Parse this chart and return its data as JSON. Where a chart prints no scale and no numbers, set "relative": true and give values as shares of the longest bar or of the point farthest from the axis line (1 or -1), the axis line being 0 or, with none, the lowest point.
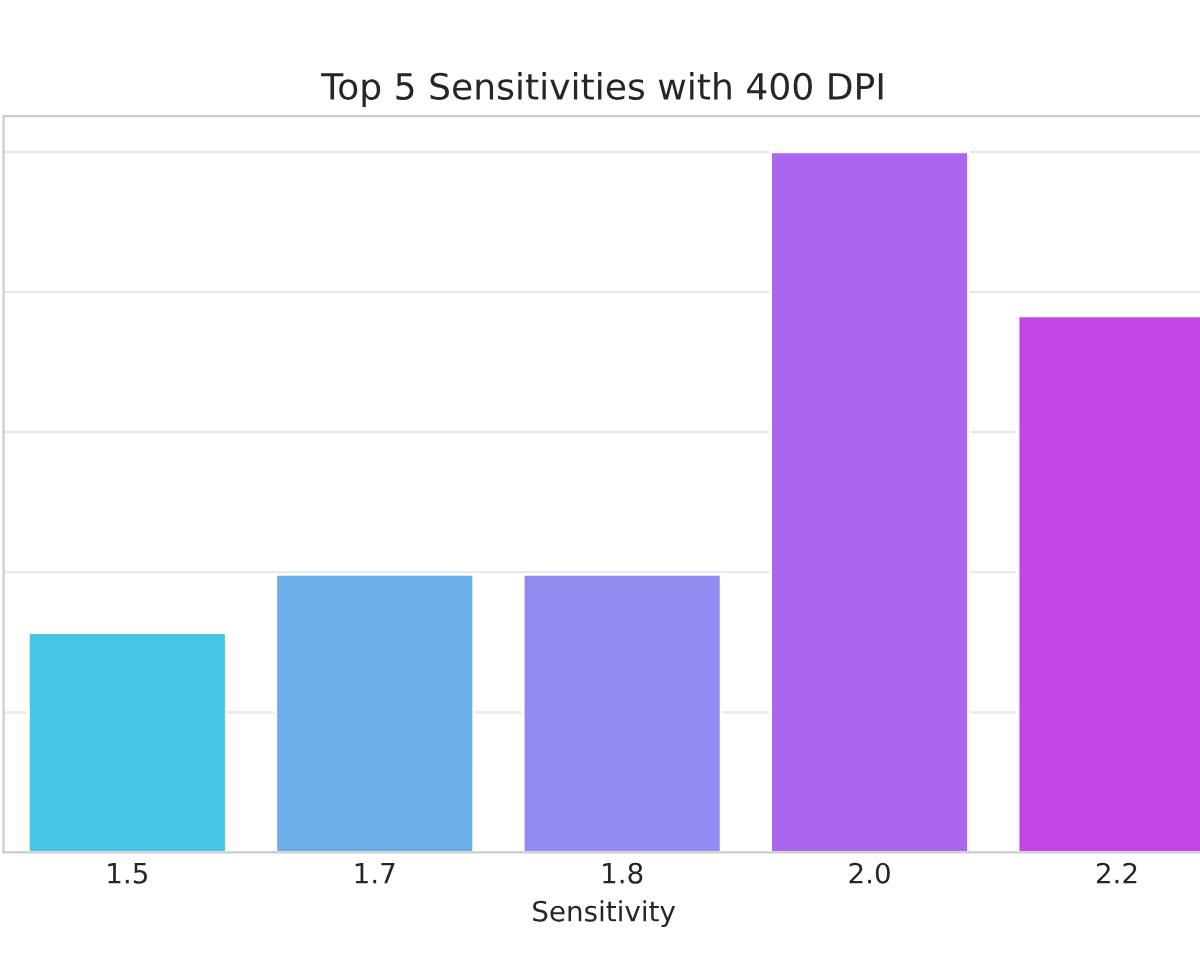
{
  "chart_data": {
    "type": "bar",
    "title": "Top 5 Sensitivities with 400 DPI",
    "xlabel": "Sensitivity",
    "categories": [
      "1.5",
      "1.7",
      "1.8",
      "2.0",
      "2.2"
    ],
    "values": [
      0.314,
      0.397,
      0.397,
      1,
      0.766
    ],
    "colors": [
      "#45c6e4",
      "#6aaee8",
      "#928cf0",
      "#a967ee",
      "#c345e6"
    ],
    "relative": true,
    "grid": "y"
  }
}
